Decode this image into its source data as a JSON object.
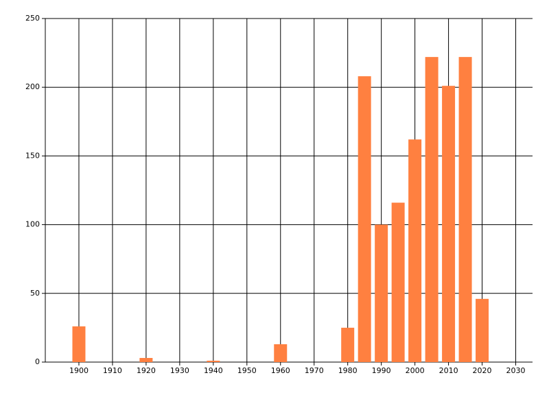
{
  "chart_data": {
    "type": "bar",
    "x": [
      1900,
      1920,
      1940,
      1960,
      1980,
      1985,
      1990,
      1995,
      2000,
      2005,
      2010,
      2015,
      2020
    ],
    "values": [
      26,
      3,
      1,
      13,
      25,
      208,
      100,
      116,
      162,
      222,
      201,
      222,
      46
    ],
    "color": "#ff8040",
    "xlim": [
      1890,
      2035
    ],
    "xticks": [
      1900,
      1910,
      1920,
      1930,
      1940,
      1950,
      1960,
      1970,
      1980,
      1990,
      2000,
      2010,
      2020,
      2030
    ],
    "ylim": [
      0,
      250
    ],
    "yticks": [
      0,
      50,
      100,
      150,
      200,
      250
    ],
    "grid": true
  }
}
